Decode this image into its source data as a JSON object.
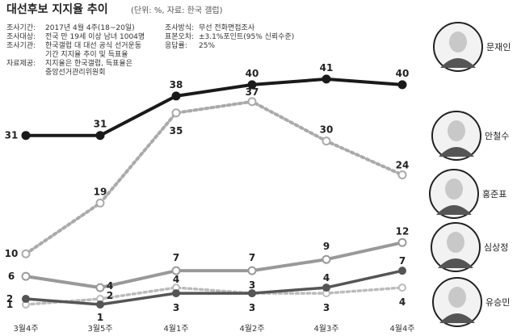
{
  "header": {
    "title": "대선후보 지지율 추이",
    "unit_note": "(단위: %, 자료: 한국 갤럽)"
  },
  "survey_info": {
    "left": [
      {
        "label": "조사기간:",
        "lines": [
          "2017년 4월 4주(18~20일)"
        ]
      },
      {
        "label": "조사대상:",
        "lines": [
          "전국 만 19세 이상 남녀 1004명"
        ]
      },
      {
        "label": "조사기관:",
        "lines": [
          "한국갤럽 대 대선 공식 선거운동",
          "기간 지지율 추이 및 득표율"
        ]
      },
      {
        "label": "자료제공:",
        "lines": [
          "지지율은 한국갤럽, 득표율은",
          "중앙선거관리위원회"
        ]
      }
    ],
    "right": [
      {
        "label": "조사방식:",
        "lines": [
          "무선 전화면접조사"
        ]
      },
      {
        "label": "표본오차:",
        "lines": [
          "±3.1%포인트(95% 신뢰수준)"
        ]
      },
      {
        "label": "응답률:",
        "lines": [
          "25%"
        ]
      }
    ]
  },
  "colors": {
    "moon": "#1a1a1a",
    "ahn": "#aaaaaa",
    "hong": "#999999",
    "sim": "#555555",
    "yoo": "#bbbbbb"
  },
  "chart_data": {
    "type": "line",
    "title": "대선후보 지지율 추이",
    "x": [
      "3월4주",
      "3월5주",
      "4월1주",
      "4월2주",
      "4월3주",
      "4월4주"
    ],
    "ylim": [
      0,
      45
    ],
    "grid": false,
    "legend": "right-side candidate photos with names",
    "series": [
      {
        "name": "문재인",
        "values": [
          31,
          31,
          38,
          40,
          41,
          40
        ],
        "style": "solid",
        "color": "#1a1a1a"
      },
      {
        "name": "안철수",
        "values": [
          10,
          19,
          35,
          37,
          30,
          24
        ],
        "style": "dotted",
        "color": "#aaaaaa"
      },
      {
        "name": "홍준표",
        "values": [
          6,
          4,
          7,
          7,
          9,
          12
        ],
        "style": "solid",
        "color": "#999999"
      },
      {
        "name": "심상정",
        "values": [
          2,
          1,
          3,
          3,
          4,
          7
        ],
        "style": "solid",
        "color": "#555555"
      },
      {
        "name": "유승민",
        "values": [
          1,
          2,
          4,
          3,
          3,
          4
        ],
        "style": "dotted",
        "color": "#bbbbbb"
      }
    ]
  }
}
